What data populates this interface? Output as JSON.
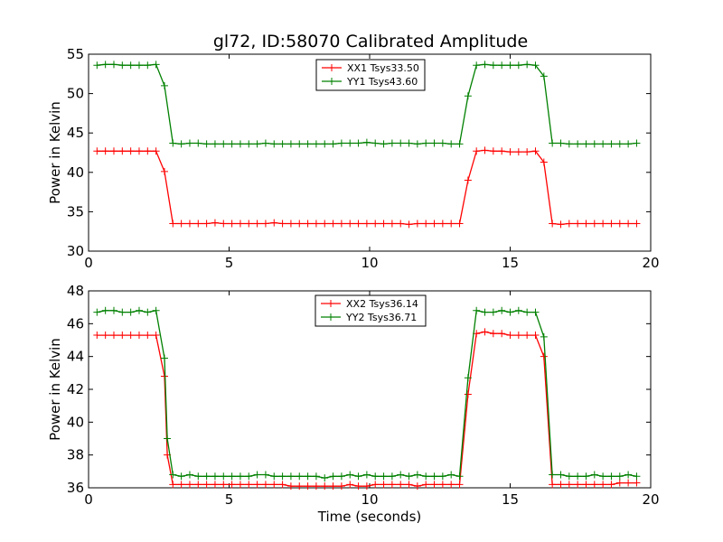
{
  "title": "gl72, ID:58070 Calibrated Amplitude",
  "chart_data": [
    {
      "type": "line",
      "ylabel": "Power in Kelvin",
      "xlabel": "",
      "xlim": [
        0,
        20
      ],
      "ylim": [
        30,
        55
      ],
      "xticks": [
        0,
        5,
        10,
        15,
        20
      ],
      "yticks": [
        30,
        35,
        40,
        45,
        50,
        55
      ],
      "grid": false,
      "legend_position": "top-center",
      "x": [
        0.3,
        0.6,
        0.9,
        1.2,
        1.5,
        1.8,
        2.1,
        2.4,
        2.7,
        3.0,
        3.3,
        3.6,
        3.9,
        4.2,
        4.5,
        4.8,
        5.1,
        5.4,
        5.7,
        6.0,
        6.3,
        6.6,
        6.9,
        7.2,
        7.5,
        7.8,
        8.1,
        8.4,
        8.7,
        9.0,
        9.3,
        9.6,
        9.9,
        10.2,
        10.5,
        10.8,
        11.1,
        11.4,
        11.7,
        12.0,
        12.3,
        12.6,
        12.9,
        13.2,
        13.5,
        13.8,
        14.1,
        14.4,
        14.7,
        15.0,
        15.3,
        15.6,
        15.9,
        16.2,
        16.5,
        16.8,
        17.1,
        17.4,
        17.7,
        18.0,
        18.3,
        18.6,
        18.9,
        19.2,
        19.5
      ],
      "series": [
        {
          "name": "XX1 Tsys33.50",
          "color": "#ff0000",
          "values": [
            42.7,
            42.7,
            42.7,
            42.7,
            42.7,
            42.7,
            42.7,
            42.7,
            40.1,
            33.5,
            33.5,
            33.5,
            33.5,
            33.5,
            33.6,
            33.5,
            33.5,
            33.5,
            33.5,
            33.5,
            33.5,
            33.6,
            33.5,
            33.5,
            33.5,
            33.5,
            33.5,
            33.5,
            33.5,
            33.5,
            33.5,
            33.5,
            33.5,
            33.5,
            33.5,
            33.5,
            33.5,
            33.4,
            33.5,
            33.5,
            33.5,
            33.5,
            33.5,
            33.5,
            39.0,
            42.7,
            42.8,
            42.7,
            42.7,
            42.6,
            42.6,
            42.6,
            42.7,
            41.3,
            33.5,
            33.4,
            33.5,
            33.5,
            33.5,
            33.5,
            33.5,
            33.5,
            33.5,
            33.5,
            33.5
          ]
        },
        {
          "name": "YY1 Tsys43.60",
          "color": "#008000",
          "values": [
            53.6,
            53.7,
            53.7,
            53.6,
            53.6,
            53.6,
            53.6,
            53.7,
            51.0,
            43.7,
            43.6,
            43.7,
            43.7,
            43.6,
            43.6,
            43.6,
            43.6,
            43.6,
            43.6,
            43.6,
            43.7,
            43.6,
            43.6,
            43.6,
            43.6,
            43.6,
            43.6,
            43.6,
            43.6,
            43.7,
            43.7,
            43.7,
            43.8,
            43.7,
            43.6,
            43.7,
            43.7,
            43.7,
            43.6,
            43.7,
            43.7,
            43.7,
            43.6,
            43.6,
            49.7,
            53.6,
            53.7,
            53.6,
            53.6,
            53.6,
            53.6,
            53.7,
            53.6,
            52.2,
            43.7,
            43.7,
            43.6,
            43.6,
            43.6,
            43.6,
            43.6,
            43.6,
            43.6,
            43.6,
            43.7
          ]
        }
      ]
    },
    {
      "type": "line",
      "ylabel": "Power in Kelvin",
      "xlabel": "Time (seconds)",
      "xlim": [
        0,
        20
      ],
      "ylim": [
        36,
        48
      ],
      "xticks": [
        0,
        5,
        10,
        15,
        20
      ],
      "yticks": [
        36,
        38,
        40,
        42,
        44,
        46,
        48
      ],
      "grid": false,
      "legend_position": "top-center",
      "x": [
        0.3,
        0.6,
        0.9,
        1.2,
        1.5,
        1.8,
        2.1,
        2.4,
        2.7,
        2.8,
        3.0,
        3.3,
        3.6,
        3.9,
        4.2,
        4.5,
        4.8,
        5.1,
        5.4,
        5.7,
        6.0,
        6.3,
        6.6,
        6.9,
        7.2,
        7.5,
        7.8,
        8.1,
        8.4,
        8.7,
        9.0,
        9.3,
        9.6,
        9.9,
        10.2,
        10.5,
        10.8,
        11.1,
        11.4,
        11.7,
        12.0,
        12.3,
        12.6,
        12.9,
        13.2,
        13.5,
        13.8,
        14.1,
        14.4,
        14.7,
        15.0,
        15.3,
        15.6,
        15.9,
        16.2,
        16.5,
        16.8,
        17.1,
        17.4,
        17.7,
        18.0,
        18.3,
        18.6,
        18.9,
        19.2,
        19.5
      ],
      "series": [
        {
          "name": "XX2 Tsys36.14",
          "color": "#ff0000",
          "values": [
            45.3,
            45.3,
            45.3,
            45.3,
            45.3,
            45.3,
            45.3,
            45.3,
            42.8,
            38.0,
            36.2,
            36.2,
            36.2,
            36.2,
            36.2,
            36.2,
            36.2,
            36.2,
            36.2,
            36.2,
            36.2,
            36.2,
            36.2,
            36.2,
            36.1,
            36.1,
            36.1,
            36.1,
            36.1,
            36.1,
            36.1,
            36.2,
            36.1,
            36.1,
            36.2,
            36.2,
            36.2,
            36.2,
            36.2,
            36.1,
            36.2,
            36.2,
            36.2,
            36.2,
            36.2,
            41.7,
            45.4,
            45.5,
            45.4,
            45.4,
            45.3,
            45.3,
            45.3,
            45.3,
            44.0,
            36.2,
            36.2,
            36.2,
            36.2,
            36.2,
            36.2,
            36.2,
            36.2,
            36.3,
            36.3,
            36.3
          ]
        },
        {
          "name": "YY2 Tsys36.71",
          "color": "#008000",
          "values": [
            46.7,
            46.8,
            46.8,
            46.7,
            46.7,
            46.8,
            46.7,
            46.8,
            43.9,
            39.0,
            36.8,
            36.7,
            36.8,
            36.7,
            36.7,
            36.7,
            36.7,
            36.7,
            36.7,
            36.7,
            36.8,
            36.8,
            36.7,
            36.7,
            36.7,
            36.7,
            36.7,
            36.7,
            36.6,
            36.7,
            36.7,
            36.8,
            36.7,
            36.8,
            36.7,
            36.7,
            36.7,
            36.8,
            36.7,
            36.8,
            36.7,
            36.7,
            36.7,
            36.8,
            36.7,
            42.7,
            46.8,
            46.7,
            46.7,
            46.8,
            46.7,
            46.8,
            46.7,
            46.7,
            45.2,
            36.8,
            36.8,
            36.7,
            36.7,
            36.7,
            36.8,
            36.7,
            36.7,
            36.7,
            36.8,
            36.7
          ]
        }
      ]
    }
  ]
}
